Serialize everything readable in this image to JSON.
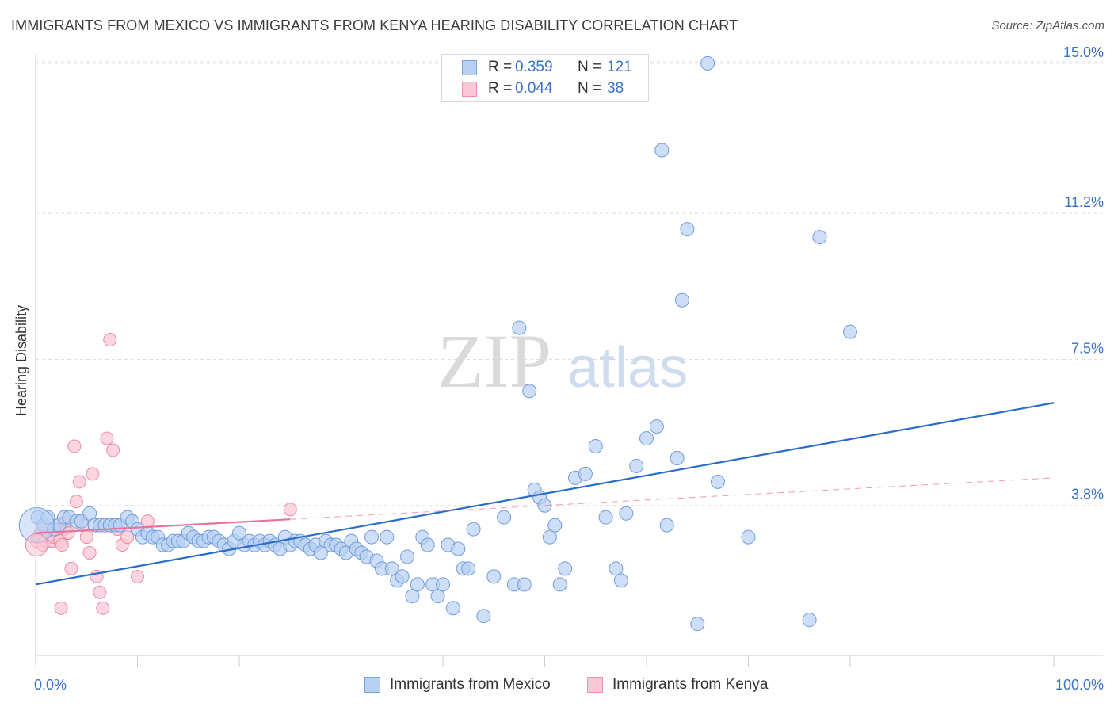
{
  "title": "IMMIGRANTS FROM MEXICO VS IMMIGRANTS FROM KENYA HEARING DISABILITY CORRELATION CHART",
  "source": "Source: ZipAtlas.com",
  "watermark": {
    "zip": "ZIP",
    "atlas": "atlas"
  },
  "stats": {
    "mexico": {
      "r_label": "R =",
      "r_value": "0.359",
      "n_label": "N =",
      "n_value": "121"
    },
    "kenya": {
      "r_label": "R =",
      "r_value": "0.044",
      "n_label": "N =",
      "n_value": "38"
    }
  },
  "legend": {
    "mexico": "Immigrants from Mexico",
    "kenya": "Immigrants from Kenya"
  },
  "colors": {
    "mexico_fill": "#b8d0f2",
    "mexico_stroke": "#6f9ddc",
    "mexico_line": "#2a6ccc",
    "kenya_fill": "#f9c8d6",
    "kenya_stroke": "#ec8aa8",
    "kenya_line": "#e8729a",
    "axis_label": "#3a72c8",
    "grid": "#dddddd"
  },
  "chart_data": {
    "type": "scatter",
    "ylabel": "Hearing Disability",
    "xlim": [
      0,
      100
    ],
    "ylim": [
      0,
      15.4
    ],
    "x_tick_labels": [
      {
        "value": 0,
        "label": "0.0%"
      },
      {
        "value": 100,
        "label": "100.0%"
      }
    ],
    "x_minor_ticks": [
      0,
      10,
      20,
      30,
      40,
      50,
      60,
      70,
      80,
      90,
      100
    ],
    "y_ticks": [
      {
        "value": 3.8,
        "label": "3.8%"
      },
      {
        "value": 7.5,
        "label": "7.5%"
      },
      {
        "value": 11.2,
        "label": "11.2%"
      },
      {
        "value": 15.0,
        "label": "15.0%"
      }
    ],
    "grid": "horizontal dashed",
    "series": [
      {
        "name": "Immigrants from Mexico",
        "color": "#b8d0f2",
        "trend": {
          "x": [
            0,
            100
          ],
          "y": [
            1.8,
            6.4
          ],
          "style": "solid"
        },
        "points": [
          [
            0.2,
            3.5
          ],
          [
            0.8,
            3.3
          ],
          [
            1.2,
            3.5
          ],
          [
            1.8,
            3.2
          ],
          [
            2.3,
            3.3
          ],
          [
            2.8,
            3.5
          ],
          [
            3.3,
            3.5
          ],
          [
            4.0,
            3.4
          ],
          [
            4.5,
            3.4
          ],
          [
            5.3,
            3.6
          ],
          [
            5.8,
            3.3
          ],
          [
            6.3,
            3.3
          ],
          [
            6.8,
            3.3
          ],
          [
            7.3,
            3.3
          ],
          [
            7.8,
            3.3
          ],
          [
            8.3,
            3.3
          ],
          [
            9.0,
            3.5
          ],
          [
            9.5,
            3.4
          ],
          [
            10.0,
            3.2
          ],
          [
            10.5,
            3.0
          ],
          [
            11.0,
            3.1
          ],
          [
            11.5,
            3.0
          ],
          [
            12.0,
            3.0
          ],
          [
            12.5,
            2.8
          ],
          [
            13.0,
            2.8
          ],
          [
            13.5,
            2.9
          ],
          [
            14.0,
            2.9
          ],
          [
            14.5,
            2.9
          ],
          [
            15.0,
            3.1
          ],
          [
            15.5,
            3.0
          ],
          [
            16.0,
            2.9
          ],
          [
            16.5,
            2.9
          ],
          [
            17.0,
            3.0
          ],
          [
            17.5,
            3.0
          ],
          [
            18.0,
            2.9
          ],
          [
            18.5,
            2.8
          ],
          [
            19.0,
            2.7
          ],
          [
            19.5,
            2.9
          ],
          [
            20.0,
            3.1
          ],
          [
            20.5,
            2.8
          ],
          [
            21.0,
            2.9
          ],
          [
            21.5,
            2.8
          ],
          [
            22.0,
            2.9
          ],
          [
            22.5,
            2.8
          ],
          [
            23.0,
            2.9
          ],
          [
            23.5,
            2.8
          ],
          [
            24.0,
            2.7
          ],
          [
            24.5,
            3.0
          ],
          [
            25.0,
            2.8
          ],
          [
            25.5,
            2.9
          ],
          [
            26.0,
            2.9
          ],
          [
            26.5,
            2.8
          ],
          [
            27.0,
            2.7
          ],
          [
            27.5,
            2.8
          ],
          [
            28.0,
            2.6
          ],
          [
            28.5,
            2.9
          ],
          [
            29.0,
            2.8
          ],
          [
            29.5,
            2.8
          ],
          [
            30.0,
            2.7
          ],
          [
            30.5,
            2.6
          ],
          [
            31.0,
            2.9
          ],
          [
            31.5,
            2.7
          ],
          [
            32.0,
            2.6
          ],
          [
            32.5,
            2.5
          ],
          [
            33.0,
            3.0
          ],
          [
            33.5,
            2.4
          ],
          [
            34.0,
            2.2
          ],
          [
            34.5,
            3.0
          ],
          [
            35.0,
            2.2
          ],
          [
            35.5,
            1.9
          ],
          [
            36.0,
            2.0
          ],
          [
            36.5,
            2.5
          ],
          [
            37.0,
            1.5
          ],
          [
            37.5,
            1.8
          ],
          [
            38.0,
            3.0
          ],
          [
            38.5,
            2.8
          ],
          [
            39.0,
            1.8
          ],
          [
            39.5,
            1.5
          ],
          [
            40.0,
            1.8
          ],
          [
            40.5,
            2.8
          ],
          [
            41.0,
            1.2
          ],
          [
            41.5,
            2.7
          ],
          [
            42.0,
            2.2
          ],
          [
            42.5,
            2.2
          ],
          [
            43.0,
            3.2
          ],
          [
            44.0,
            1.0
          ],
          [
            45.0,
            2.0
          ],
          [
            46.0,
            3.5
          ],
          [
            47.0,
            1.8
          ],
          [
            47.5,
            8.3
          ],
          [
            48.0,
            1.8
          ],
          [
            48.5,
            6.7
          ],
          [
            49.0,
            4.2
          ],
          [
            49.5,
            4.0
          ],
          [
            50.0,
            3.8
          ],
          [
            50.5,
            3.0
          ],
          [
            51.0,
            3.3
          ],
          [
            51.5,
            1.8
          ],
          [
            52.0,
            2.2
          ],
          [
            53.0,
            4.5
          ],
          [
            54.0,
            4.6
          ],
          [
            55.0,
            5.3
          ],
          [
            56.0,
            3.5
          ],
          [
            57.0,
            2.2
          ],
          [
            57.5,
            1.9
          ],
          [
            58.0,
            3.6
          ],
          [
            59.0,
            4.8
          ],
          [
            60.0,
            5.5
          ],
          [
            61.0,
            5.8
          ],
          [
            61.5,
            12.8
          ],
          [
            62.0,
            3.3
          ],
          [
            63.0,
            5.0
          ],
          [
            63.5,
            9.0
          ],
          [
            64.0,
            10.8
          ],
          [
            65.0,
            0.8
          ],
          [
            66.0,
            15.0
          ],
          [
            67.0,
            4.4
          ],
          [
            70.0,
            3.0
          ],
          [
            76.0,
            0.9
          ],
          [
            77.0,
            10.6
          ],
          [
            80.0,
            8.2
          ]
        ]
      },
      {
        "name": "Immigrants from Kenya",
        "color": "#f9c8d6",
        "trend": {
          "x": [
            0,
            100
          ],
          "y": [
            3.1,
            4.5
          ],
          "style": "solid to x=25, then dashed"
        },
        "points": [
          [
            0.1,
            2.9
          ],
          [
            0.3,
            3.0
          ],
          [
            0.5,
            3.1
          ],
          [
            0.7,
            2.8
          ],
          [
            0.9,
            3.0
          ],
          [
            1.0,
            2.9
          ],
          [
            1.2,
            3.1
          ],
          [
            1.4,
            3.0
          ],
          [
            1.6,
            2.9
          ],
          [
            1.8,
            3.0
          ],
          [
            2.0,
            3.2
          ],
          [
            2.2,
            3.0
          ],
          [
            2.4,
            2.9
          ],
          [
            2.6,
            2.8
          ],
          [
            2.8,
            3.2
          ],
          [
            3.0,
            3.4
          ],
          [
            3.2,
            3.1
          ],
          [
            3.5,
            2.2
          ],
          [
            3.8,
            5.3
          ],
          [
            4.0,
            3.9
          ],
          [
            4.3,
            4.4
          ],
          [
            4.6,
            3.3
          ],
          [
            5.0,
            3.0
          ],
          [
            5.3,
            2.6
          ],
          [
            5.6,
            4.6
          ],
          [
            6.0,
            2.0
          ],
          [
            6.3,
            1.6
          ],
          [
            6.6,
            1.2
          ],
          [
            7.0,
            5.5
          ],
          [
            7.3,
            8.0
          ],
          [
            7.6,
            5.2
          ],
          [
            8.0,
            3.2
          ],
          [
            8.5,
            2.8
          ],
          [
            9.0,
            3.0
          ],
          [
            10.0,
            2.0
          ],
          [
            11.0,
            3.4
          ],
          [
            25.0,
            3.7
          ],
          [
            2.5,
            1.2
          ]
        ]
      }
    ]
  }
}
